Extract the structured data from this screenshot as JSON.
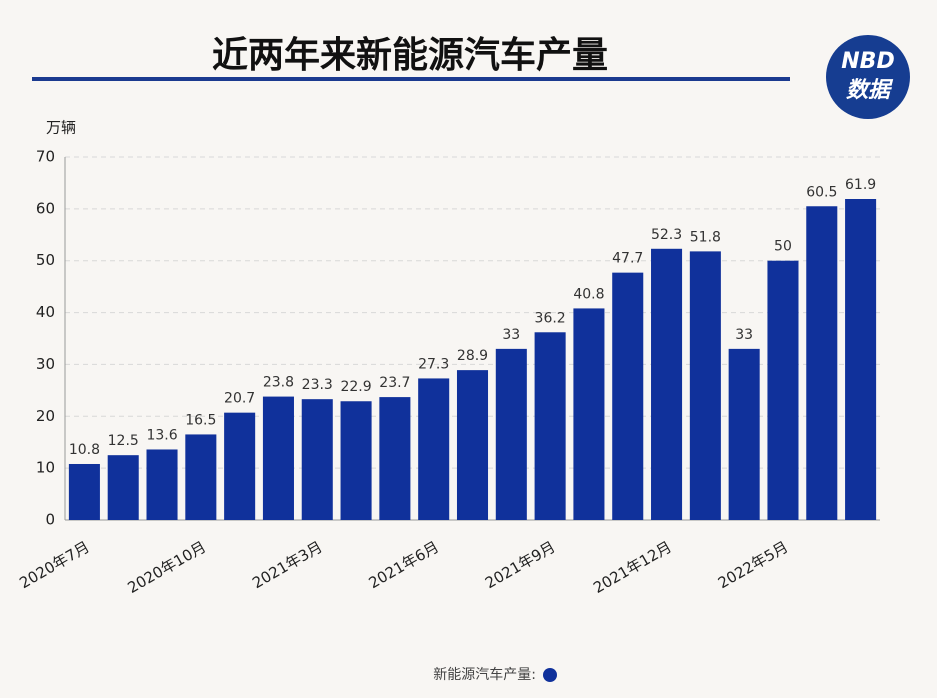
{
  "chart_data": {
    "type": "bar",
    "title": "近两年来新能源汽车产量",
    "y_unit": "万辆",
    "logo": {
      "top": "NBD",
      "bottom": "数据"
    },
    "legend_label": "新能源汽车产量:",
    "categories": [
      "2020年7月",
      null,
      null,
      "2020年10月",
      null,
      null,
      "2021年3月",
      null,
      null,
      "2021年6月",
      null,
      null,
      "2021年9月",
      null,
      null,
      "2021年12月",
      null,
      null,
      "2022年5月",
      null,
      null
    ],
    "series": [
      {
        "name": "新能源汽车产量",
        "color": "#10319b",
        "values": [
          10.8,
          12.5,
          13.6,
          16.5,
          20.7,
          23.8,
          23.3,
          22.9,
          23.7,
          27.3,
          28.9,
          33,
          36.2,
          40.8,
          47.7,
          52.3,
          51.8,
          33,
          50,
          60.5,
          61.9
        ]
      }
    ],
    "ylim": [
      0,
      70
    ],
    "yticks": [
      0,
      10,
      20,
      30,
      40,
      50,
      60,
      70
    ],
    "grid": true
  }
}
